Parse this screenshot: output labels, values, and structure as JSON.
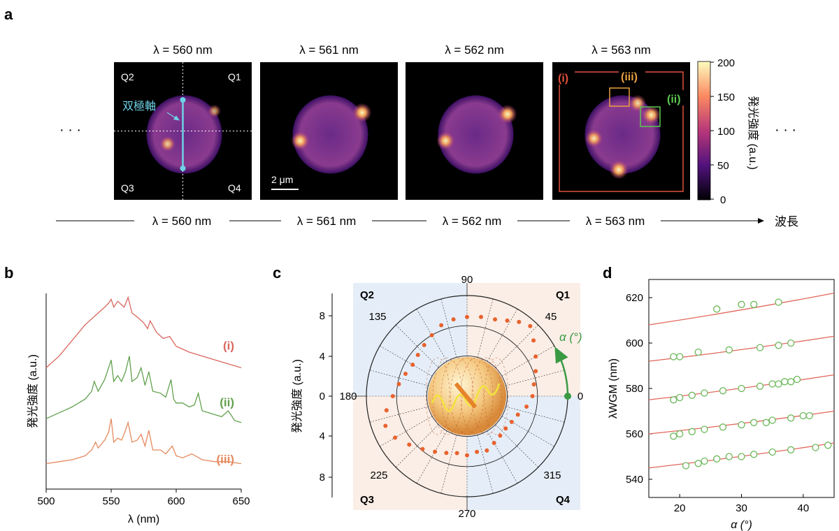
{
  "panel_a": {
    "label": "a",
    "ellipsis": "· · ·",
    "frames": [
      {
        "title": "λ = 560 nm",
        "glow": [
          [
            0.28,
            0.62,
            0.55
          ],
          [
            0.9,
            0.2,
            0.25
          ]
        ]
      },
      {
        "title": "λ = 561 nm",
        "glow": [
          [
            0.1,
            0.58,
            0.9
          ],
          [
            0.92,
            0.22,
            0.95
          ]
        ]
      },
      {
        "title": "λ = 562 nm",
        "glow": [
          [
            0.1,
            0.58,
            0.85
          ],
          [
            0.92,
            0.24,
            0.95
          ]
        ]
      },
      {
        "title": "λ = 563 nm",
        "glow": [
          [
            0.12,
            0.55,
            0.8
          ],
          [
            0.45,
            0.95,
            0.95
          ],
          [
            0.88,
            0.25,
            0.9
          ],
          [
            0.7,
            0.1,
            0.7
          ]
        ]
      }
    ],
    "quadrants": [
      "Q2",
      "Q1",
      "Q3",
      "Q4"
    ],
    "dipole_label": "双極軸",
    "scale_bar": "2 μm",
    "roi_labels": [
      {
        "text": "(i)",
        "color": "#e0503c"
      },
      {
        "text": "(iii)",
        "color": "#e8a040"
      },
      {
        "text": "(ii)",
        "color": "#5cc850"
      }
    ],
    "colorbar": {
      "ticks": [
        "200",
        "150",
        "100",
        "50",
        "0"
      ],
      "label": "発光強度 (a.u.)"
    },
    "wavelength_axis": {
      "ticks": [
        "λ = 560 nm",
        "λ = 561 nm",
        "λ = 562 nm",
        "λ = 563 nm"
      ],
      "label": "波長"
    }
  },
  "colors": {
    "i": "#d9675f",
    "ii": "#62a14e",
    "iii": "#e58a5e",
    "fit": "#e2665a",
    "dots": "#e8622e",
    "arrow": "#3a9a44",
    "dipole": "#6fd2e6"
  },
  "chart_data": [
    {
      "panel": "b",
      "type": "line",
      "xlabel": "λ (nm)",
      "ylabel": "発光強度 (a.u.)",
      "xlim": [
        500,
        650
      ],
      "xticks": [
        "500",
        "550",
        "600",
        "650"
      ],
      "series": [
        {
          "name": "(i)",
          "x": [
            500,
            510,
            520,
            530,
            540,
            545,
            548,
            550,
            552,
            555,
            560,
            563,
            566,
            570,
            575,
            578,
            580,
            585,
            590,
            595,
            600,
            610,
            620,
            630,
            640,
            650
          ],
          "y": [
            0.62,
            0.68,
            0.76,
            0.84,
            0.9,
            0.93,
            0.95,
            0.97,
            0.93,
            0.96,
            0.93,
            0.98,
            0.9,
            0.88,
            0.85,
            0.82,
            0.86,
            0.8,
            0.77,
            0.78,
            0.73,
            0.7,
            0.68,
            0.66,
            0.64,
            0.62
          ]
        },
        {
          "name": "(ii)",
          "x": [
            500,
            510,
            520,
            530,
            535,
            537,
            540,
            545,
            548,
            550,
            552,
            555,
            558,
            561,
            564,
            566,
            570,
            573,
            576,
            579,
            582,
            588,
            592,
            596,
            598,
            600,
            605,
            610,
            614,
            617,
            620,
            625,
            630,
            635,
            640,
            645,
            650
          ],
          "y": [
            0.36,
            0.39,
            0.42,
            0.46,
            0.5,
            0.55,
            0.5,
            0.56,
            0.62,
            0.66,
            0.55,
            0.58,
            0.55,
            0.6,
            0.68,
            0.55,
            0.57,
            0.62,
            0.53,
            0.6,
            0.5,
            0.49,
            0.47,
            0.56,
            0.46,
            0.44,
            0.44,
            0.42,
            0.43,
            0.49,
            0.4,
            0.39,
            0.38,
            0.37,
            0.4,
            0.35,
            0.34
          ]
        },
        {
          "name": "(iii)",
          "x": [
            500,
            510,
            520,
            530,
            535,
            538,
            540,
            545,
            548,
            550,
            552,
            555,
            558,
            561,
            563,
            566,
            570,
            573,
            576,
            579,
            582,
            588,
            592,
            597,
            600,
            605,
            612,
            620,
            630,
            640,
            650
          ],
          "y": [
            0.13,
            0.14,
            0.15,
            0.17,
            0.2,
            0.24,
            0.21,
            0.25,
            0.29,
            0.36,
            0.24,
            0.26,
            0.25,
            0.3,
            0.34,
            0.24,
            0.25,
            0.28,
            0.22,
            0.3,
            0.2,
            0.2,
            0.18,
            0.22,
            0.17,
            0.16,
            0.18,
            0.15,
            0.14,
            0.14,
            0.13
          ]
        }
      ]
    },
    {
      "panel": "c",
      "type": "scatter",
      "polar": true,
      "ylabel": "発光強度 (a.u.)",
      "radial_ticks": [
        "8",
        "4",
        "0",
        "4",
        "8"
      ],
      "angle_ticks": [
        "90",
        "45",
        "0",
        "315",
        "270",
        "225",
        "180",
        "135"
      ],
      "quadrants": [
        "Q2",
        "Q1",
        "Q3",
        "Q4"
      ],
      "angle_label": "α (°)",
      "points": [
        [
          0,
          5.2
        ],
        [
          10,
          5.4
        ],
        [
          20,
          5.8
        ],
        [
          30,
          6.3
        ],
        [
          40,
          6.9
        ],
        [
          48,
          7.5
        ],
        [
          55,
          7.2
        ],
        [
          62,
          6.8
        ],
        [
          70,
          6.5
        ],
        [
          80,
          6.4
        ],
        [
          90,
          6.3
        ],
        [
          100,
          6.2
        ],
        [
          110,
          6.0
        ],
        [
          120,
          5.6
        ],
        [
          130,
          5.3
        ],
        [
          140,
          5.1
        ],
        [
          150,
          5.0
        ],
        [
          160,
          5.2
        ],
        [
          170,
          5.5
        ],
        [
          180,
          5.9
        ],
        [
          190,
          6.5
        ],
        [
          200,
          6.9
        ],
        [
          210,
          6.6
        ],
        [
          220,
          6.0
        ],
        [
          230,
          5.5
        ],
        [
          240,
          5.1
        ],
        [
          250,
          4.8
        ],
        [
          260,
          4.6
        ],
        [
          270,
          4.7
        ],
        [
          280,
          4.5
        ],
        [
          290,
          4.6
        ],
        [
          300,
          4.3
        ],
        [
          310,
          4.1
        ],
        [
          320,
          4.0
        ],
        [
          330,
          4.1
        ],
        [
          340,
          4.3
        ],
        [
          350,
          4.8
        ]
      ]
    },
    {
      "panel": "d",
      "type": "scatter",
      "xlabel": "α (°)",
      "ylabel": "λWGM (nm)",
      "xlim": [
        15,
        45
      ],
      "ylim": [
        532,
        628
      ],
      "xticks": [
        "20",
        "30",
        "40"
      ],
      "yticks": [
        "540",
        "560",
        "580",
        "600",
        "620"
      ],
      "series": [
        {
          "fit": [
            [
              15,
              545
            ],
            [
              45,
              556
            ]
          ],
          "points": [
            [
              21,
              546
            ],
            [
              23,
              547
            ],
            [
              24,
              548
            ],
            [
              26,
              549
            ],
            [
              28,
              550
            ],
            [
              30,
              550
            ],
            [
              32,
              551
            ],
            [
              35,
              552
            ],
            [
              38,
              553
            ],
            [
              42,
              554
            ],
            [
              44,
              555
            ]
          ]
        },
        {
          "fit": [
            [
              15,
              560
            ],
            [
              45,
              570
            ]
          ],
          "points": [
            [
              19,
              559
            ],
            [
              20,
              560
            ],
            [
              22,
              561
            ],
            [
              24,
              562
            ],
            [
              27,
              563
            ],
            [
              30,
              564
            ],
            [
              32,
              565
            ],
            [
              34,
              565
            ],
            [
              35,
              566
            ],
            [
              38,
              567
            ],
            [
              40,
              568
            ],
            [
              41,
              568
            ]
          ]
        },
        {
          "fit": [
            [
              15,
              575
            ],
            [
              45,
              586
            ]
          ],
          "points": [
            [
              19,
              575
            ],
            [
              20,
              576
            ],
            [
              22,
              577
            ],
            [
              24,
              578
            ],
            [
              27,
              579
            ],
            [
              30,
              580
            ],
            [
              33,
              581
            ],
            [
              35,
              582
            ],
            [
              36,
              582
            ],
            [
              37,
              583
            ],
            [
              38,
              583
            ],
            [
              39,
              584
            ]
          ]
        },
        {
          "fit": [
            [
              15,
              592
            ],
            [
              45,
              603
            ]
          ],
          "points": [
            [
              19,
              594
            ],
            [
              20,
              594
            ],
            [
              23,
              596
            ],
            [
              28,
              597
            ],
            [
              33,
              598
            ],
            [
              36,
              599
            ],
            [
              38,
              600
            ]
          ]
        },
        {
          "fit": [
            [
              15,
              608
            ],
            [
              45,
              622
            ]
          ],
          "points": [
            [
              26,
              615
            ],
            [
              30,
              617
            ],
            [
              32,
              617
            ],
            [
              36,
              618
            ]
          ]
        }
      ]
    }
  ]
}
